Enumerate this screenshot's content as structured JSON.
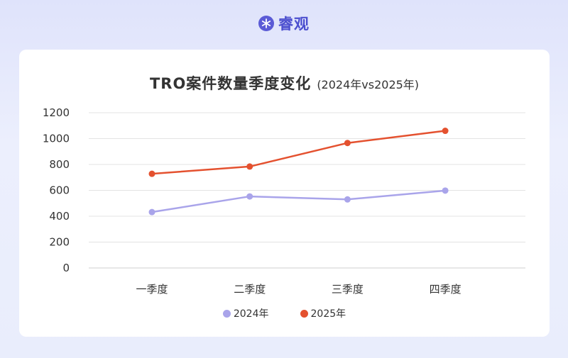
{
  "brand": {
    "name": "睿观",
    "icon": "snowflake-logo-icon",
    "color": "#4c4fcf"
  },
  "chart_data": {
    "type": "line",
    "title": "TRO案件数量季度变化",
    "subtitle": "(2024年vs2025年)",
    "categories": [
      "一季度",
      "二季度",
      "三季度",
      "四季度"
    ],
    "ylim": [
      0,
      1200
    ],
    "yticks": [
      "0",
      "200",
      "400",
      "600",
      "800",
      "1000",
      "1200"
    ],
    "grid": true,
    "legend_position": "bottom",
    "series": [
      {
        "name": "2024年",
        "color": "#a9a4ea",
        "values": [
          432,
          553,
          530,
          598
        ]
      },
      {
        "name": "2025年",
        "color": "#e4512f",
        "values": [
          728,
          784,
          966,
          1060
        ]
      }
    ]
  }
}
